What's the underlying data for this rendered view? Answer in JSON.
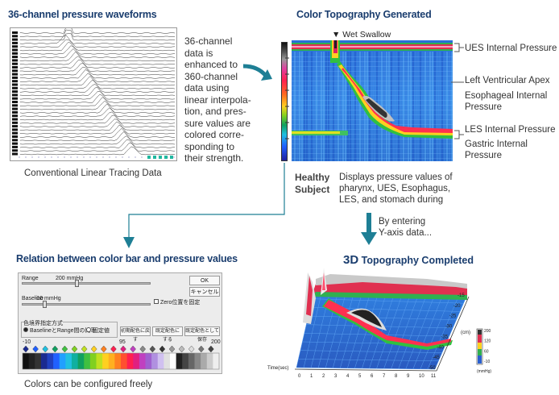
{
  "left_top": {
    "title": "36-channel pressure waveforms",
    "description_lines": [
      "36-channel",
      "data is",
      "enhanced to",
      "360-channel",
      "data using",
      "linear interpola-",
      "tion, and pres-",
      "sure values are",
      "colored corre-",
      "sponding to",
      "their strength."
    ],
    "caption": "Conventional Linear Tracing Data"
  },
  "right_top": {
    "title": "Color Topography Generated",
    "marker": "▼ Wet Swallow",
    "labels": [
      "UES Internal Pressure",
      "Left Ventricular Apex",
      "Esophageal Internal",
      "Pressure",
      "LES Internal Pressure",
      "Gastric Internal",
      "Pressure"
    ],
    "subject_label_1": "Healthy",
    "subject_label_2": "Subject",
    "description_lines": [
      "Displays pressure values of",
      "pharynx, UES, Esophagus,",
      "LES, and stomach during"
    ]
  },
  "transition": {
    "lines": [
      "By entering",
      "Y-axis data..."
    ]
  },
  "left_bottom": {
    "title": "Relation between color bar and pressure values",
    "caption": "Colors can be configured freely",
    "dialog": {
      "range_label": "Range",
      "range_value": "200 mmHg",
      "baseline_label": "Baseline",
      "baseline_value": "-10 mmHg",
      "ok": "OK",
      "cancel": "キャンセル",
      "zero_fix": "Zero位置を固定",
      "mode_group": "色境界指定方式",
      "mode_ratio": "BaselineとRange間の比率",
      "mode_fixed": "固定値",
      "btn_initial": "初期配色に戻す",
      "btn_set": "既定配色にする",
      "btn_save": "既定配色として保存",
      "scale_min": "-10",
      "scale_mid": "95",
      "scale_max": "200"
    }
  },
  "right_bottom": {
    "title_bold": "3D",
    "title_rest": " Topography Completed",
    "axis_x_label": "Time(sec)",
    "axis_x_ticks": [
      "0",
      "1",
      "2",
      "3",
      "4",
      "5",
      "6",
      "7",
      "8",
      "9",
      "10",
      "11"
    ],
    "axis_y_label": "(cm)",
    "axis_y_ticks": [
      "-15",
      "-20",
      "-25",
      "-30",
      "-35",
      "-40",
      "-45",
      "-50"
    ],
    "unit": "(mmHg)",
    "scale_ticks": [
      "200",
      "120",
      "60",
      "-10"
    ]
  },
  "colors": {
    "title_blue": "#1a3d6e",
    "arrow_teal": "#1e7f95"
  }
}
